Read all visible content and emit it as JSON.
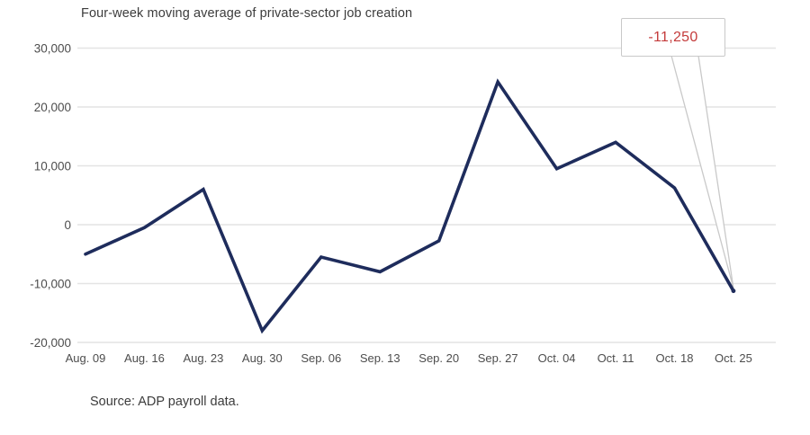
{
  "chart": {
    "title": "Four-week moving average of private-sector job creation",
    "source": "Source: ADP payroll data.",
    "annotation_label": "-11,250",
    "colors": {
      "line": "#1e2c5c",
      "grid": "#e4e4e4",
      "axis_text": "#4d4d4d",
      "title_text": "#3c3c3c",
      "callout_text": "#c43b3b",
      "callout_border": "#c9c9c9",
      "callout_bg": "#ffffff"
    }
  },
  "chart_data": {
    "type": "line",
    "title": "Four-week moving average of private-sector job creation",
    "categories": [
      "Aug. 09",
      "Aug. 16",
      "Aug. 23",
      "Aug. 30",
      "Sep. 06",
      "Sep. 13",
      "Sep. 20",
      "Sep. 27",
      "Oct. 04",
      "Oct. 11",
      "Oct. 18",
      "Oct. 25"
    ],
    "values": [
      -5000,
      -500,
      6000,
      -18000,
      -5500,
      -8000,
      -2750,
      24250,
      9500,
      14000,
      6250,
      -11250
    ],
    "xlabel": "",
    "ylabel": "",
    "ylim": [
      -20000,
      30000
    ],
    "yticks": [
      30000,
      20000,
      10000,
      0,
      -10000,
      -20000
    ],
    "grid": true,
    "legend": false,
    "annotation": {
      "index": 11,
      "label": "-11,250"
    },
    "source": "Source: ADP payroll data."
  }
}
